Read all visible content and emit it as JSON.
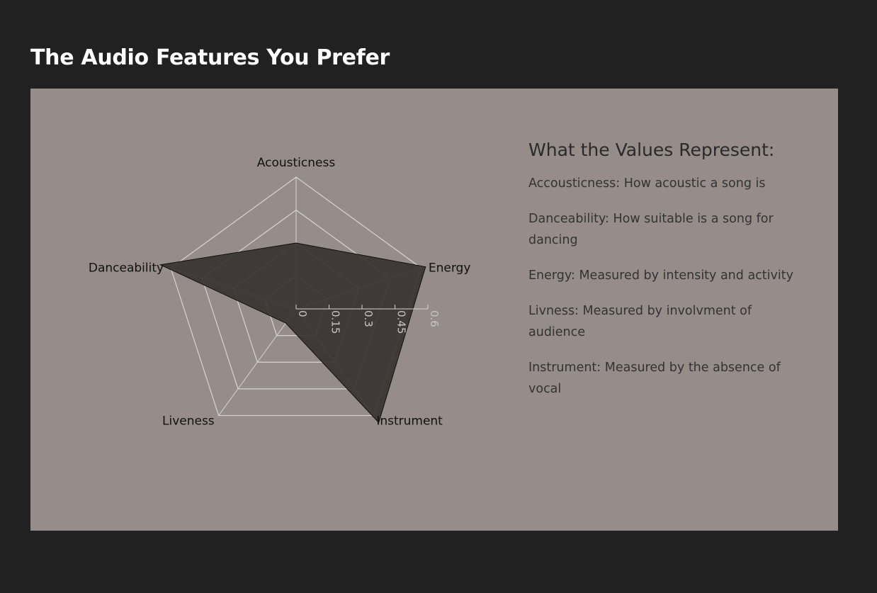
{
  "page": {
    "title": "The Audio Features You Prefer"
  },
  "legend": {
    "heading": "What the Values Represent:",
    "items": [
      "Accousticness: How acoustic a song is",
      "Danceability: How suitable is a song for dancing",
      "Energy: Measured by intensity and activity",
      "Livness: Measured by involvment of audience",
      "Instrument: Measured by the absence of vocal"
    ]
  },
  "colors": {
    "page_background": "#212121",
    "panel_background": "#968c8a",
    "data_fill": "#373331",
    "grid": "#d8d3d2"
  },
  "chart_data": {
    "type": "radar",
    "axes": [
      "Acousticness",
      "Energy",
      "Instrument",
      "Liveness",
      "Danceability"
    ],
    "values": [
      0.3,
      0.62,
      0.64,
      0.08,
      0.65
    ],
    "ticks": [
      "0",
      "0.15",
      "0.3",
      "0.45",
      "0.6"
    ],
    "range": [
      0,
      0.6
    ],
    "grid": true
  }
}
